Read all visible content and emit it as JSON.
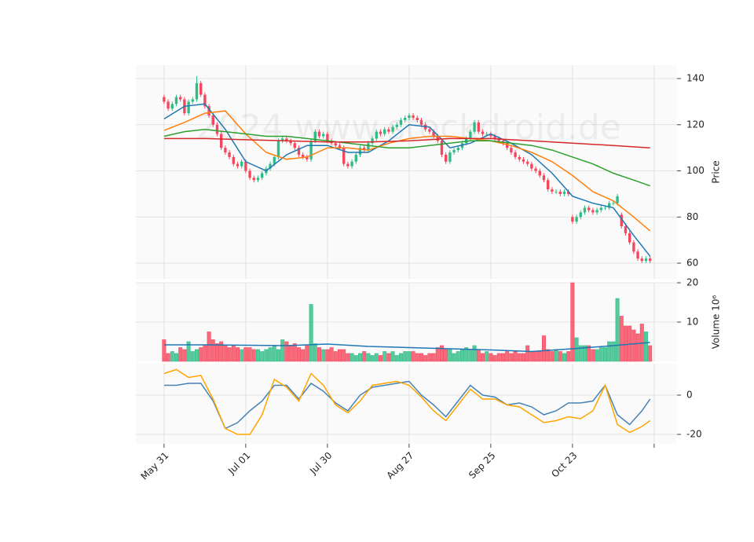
{
  "chart_data": [
    {
      "type": "candlestick",
      "watermark": "2024 www.stockdroid.de",
      "ylabel": "Price",
      "ylim": [
        53.2,
        145.8
      ],
      "yticks": [
        60,
        80,
        100,
        120,
        140
      ],
      "grid": true,
      "up_color": "#2ebd85",
      "down_color": "#f6465d",
      "open": [
        132,
        130,
        127,
        129,
        132,
        131,
        125,
        130,
        131,
        138,
        133,
        128,
        124,
        120,
        116,
        110,
        108,
        106,
        103,
        102,
        104,
        100,
        97,
        96,
        97,
        99,
        101,
        103,
        106,
        113,
        114,
        113,
        112,
        110,
        107,
        106,
        105,
        113,
        117,
        115,
        116,
        113,
        112,
        111,
        110,
        103,
        102,
        104,
        107,
        110,
        109,
        112,
        114,
        117,
        116,
        118,
        117,
        119,
        120,
        122,
        123,
        124,
        123,
        122,
        120,
        118,
        117,
        115,
        113,
        107,
        104,
        108,
        109,
        110,
        112,
        114,
        117,
        121,
        117,
        116,
        116,
        115,
        114,
        113,
        112,
        110,
        108,
        106,
        105,
        104,
        103,
        101,
        100,
        98,
        96,
        92,
        91,
        91,
        90,
        91,
        80,
        78,
        80,
        82,
        84,
        83,
        82,
        83,
        84,
        84,
        86,
        86,
        81,
        76,
        73,
        69,
        65,
        62,
        61,
        62
      ],
      "high": [
        133,
        131,
        130,
        133,
        133,
        132,
        131,
        132,
        141,
        139,
        134,
        129,
        125,
        121,
        117,
        111,
        109,
        107,
        104,
        105,
        105,
        101,
        98,
        98,
        100,
        102,
        104,
        107,
        114,
        115,
        115,
        114,
        113,
        111,
        108,
        107,
        114,
        118,
        118,
        117,
        117,
        114,
        113,
        112,
        111,
        104,
        105,
        108,
        111,
        111,
        113,
        115,
        118,
        118,
        119,
        119,
        120,
        121,
        123,
        124,
        125,
        125,
        124,
        123,
        121,
        119,
        118,
        116,
        114,
        108,
        109,
        110,
        111,
        113,
        115,
        118,
        122,
        122,
        118,
        117,
        117,
        116,
        115,
        114,
        113,
        111,
        109,
        107,
        106,
        105,
        104,
        102,
        101,
        99,
        97,
        93,
        92,
        92,
        92,
        92,
        81,
        81,
        83,
        85,
        85,
        84,
        84,
        85,
        85,
        87,
        87,
        90,
        82,
        77,
        74,
        70,
        66,
        63,
        63,
        63
      ],
      "low": [
        129,
        126,
        126,
        128,
        130,
        124,
        124,
        129,
        130,
        132,
        127,
        123,
        119,
        115,
        109,
        107,
        105,
        102,
        101,
        101,
        99,
        96,
        95,
        95,
        96,
        98,
        100,
        102,
        105,
        112,
        112,
        111,
        109,
        106,
        105,
        104,
        104,
        112,
        114,
        114,
        112,
        111,
        110,
        109,
        102,
        101,
        101,
        103,
        106,
        108,
        108,
        111,
        113,
        115,
        115,
        116,
        116,
        118,
        119,
        121,
        122,
        122,
        121,
        119,
        117,
        116,
        114,
        112,
        106,
        103,
        103,
        107,
        108,
        109,
        111,
        113,
        116,
        116,
        115,
        115,
        114,
        113,
        112,
        111,
        109,
        107,
        105,
        104,
        103,
        102,
        100,
        99,
        97,
        95,
        91,
        90,
        90,
        89,
        89,
        89,
        77,
        77,
        79,
        81,
        82,
        81,
        81,
        82,
        83,
        83,
        85,
        85,
        75,
        72,
        68,
        64,
        61,
        60,
        60,
        60
      ],
      "close": [
        130,
        127,
        129,
        132,
        131,
        125,
        130,
        131,
        138,
        133,
        128,
        124,
        120,
        116,
        110,
        108,
        106,
        103,
        102,
        104,
        100,
        97,
        96,
        97,
        99,
        101,
        103,
        106,
        113,
        114,
        113,
        112,
        110,
        107,
        106,
        105,
        113,
        117,
        115,
        116,
        113,
        112,
        111,
        110,
        103,
        102,
        104,
        107,
        110,
        109,
        112,
        114,
        117,
        116,
        118,
        117,
        119,
        120,
        122,
        123,
        124,
        123,
        122,
        120,
        118,
        117,
        115,
        113,
        107,
        104,
        108,
        109,
        110,
        112,
        114,
        117,
        121,
        117,
        116,
        116,
        115,
        114,
        113,
        112,
        110,
        108,
        106,
        105,
        104,
        103,
        101,
        100,
        98,
        96,
        92,
        91,
        91,
        90,
        91,
        90,
        78,
        80,
        82,
        84,
        83,
        82,
        83,
        84,
        84,
        86,
        86,
        89,
        76,
        73,
        69,
        65,
        62,
        61,
        62,
        61
      ],
      "series": [
        {
          "color": "#1f77b4",
          "x": [
            0,
            5,
            10,
            15,
            20,
            25,
            30,
            35,
            40,
            45,
            50,
            55,
            60,
            65,
            70,
            75,
            80,
            85,
            90,
            95,
            100,
            105,
            110,
            115,
            119
          ],
          "values": [
            122.5,
            128,
            129,
            118,
            104,
            100,
            107,
            111,
            111,
            108,
            108,
            113,
            120,
            119,
            110,
            112,
            116,
            112,
            107,
            99,
            89,
            86,
            84,
            72,
            63
          ]
        },
        {
          "color": "#ff7f0e",
          "x": [
            0,
            5,
            10,
            15,
            20,
            25,
            30,
            35,
            40,
            45,
            50,
            55,
            60,
            65,
            70,
            75,
            80,
            85,
            90,
            95,
            100,
            105,
            110,
            115,
            119
          ],
          "values": [
            117.5,
            121,
            125,
            126,
            116,
            108,
            105,
            106,
            110,
            110,
            109,
            112,
            114,
            115,
            115,
            114,
            113,
            111,
            108,
            104,
            98,
            91,
            87,
            80,
            74
          ]
        },
        {
          "color": "#2ca02c",
          "x": [
            0,
            5,
            10,
            15,
            20,
            25,
            30,
            35,
            40,
            45,
            50,
            55,
            60,
            65,
            70,
            75,
            80,
            85,
            90,
            95,
            100,
            105,
            110,
            115,
            119
          ],
          "values": [
            115,
            117,
            118,
            117,
            116,
            115,
            115,
            114,
            113,
            112,
            111,
            110,
            110,
            111,
            112,
            113,
            113,
            112,
            111,
            109,
            106,
            103,
            99,
            96,
            93.5
          ]
        },
        {
          "color": "#d62728",
          "x": [
            0,
            10,
            20,
            30,
            40,
            50,
            60,
            70,
            80,
            90,
            100,
            110,
            119
          ],
          "values": [
            114,
            114,
            113.5,
            113,
            112.5,
            112.5,
            113,
            114,
            114,
            113,
            112,
            111,
            110
          ]
        }
      ]
    },
    {
      "type": "bar",
      "ylabel": "Volume  10⁶",
      "ylim": [
        0,
        20
      ],
      "yticks": [
        10,
        20
      ],
      "grid": true,
      "values": [
        5.5,
        2,
        2.5,
        2,
        3.5,
        3,
        5,
        2.5,
        3,
        3.5,
        4,
        7.5,
        5.5,
        4.5,
        5,
        4,
        3.5,
        4,
        3.5,
        3,
        3.5,
        3.5,
        3,
        3,
        2.5,
        3,
        3.5,
        4,
        3,
        5.5,
        5,
        4,
        4.5,
        3.5,
        3,
        4,
        14.5,
        4.5,
        3.5,
        3,
        3,
        3.5,
        2.5,
        3,
        3,
        2,
        2,
        1.5,
        2,
        2.5,
        2,
        1.5,
        2,
        1.5,
        2.5,
        2,
        2.5,
        1.5,
        2,
        2.5,
        2.5,
        2.5,
        2,
        2,
        1.5,
        2,
        2,
        3.5,
        4,
        3,
        3,
        2,
        2.5,
        3,
        3.5,
        3,
        4,
        3,
        2,
        2.5,
        2,
        1.5,
        2,
        2,
        2.5,
        2,
        2.5,
        2,
        2,
        4,
        2.5,
        2.5,
        2.5,
        6.5,
        3,
        2.5,
        3,
        2.5,
        2,
        2.5,
        20,
        6,
        4,
        4,
        4,
        3,
        3,
        3.5,
        3.5,
        5,
        5,
        16,
        11.5,
        9,
        9,
        8,
        7,
        9.5,
        7.5,
        4
      ],
      "series": [
        {
          "color": "#1f77b4",
          "x": [
            0,
            10,
            20,
            30,
            40,
            50,
            60,
            70,
            80,
            90,
            100,
            110,
            119
          ],
          "values": [
            4.2,
            4.2,
            4.1,
            4.0,
            4.4,
            3.8,
            3.5,
            3.2,
            2.9,
            2.5,
            3.2,
            4.0,
            4.8
          ]
        }
      ]
    },
    {
      "type": "line",
      "ylim": [
        -24.8,
        16
      ],
      "yticks": [
        -20,
        0
      ],
      "grid": true,
      "xlim": [
        -6.9,
        125.6
      ],
      "xticks": [
        {
          "value": 0,
          "label": "May 31"
        },
        {
          "value": 20,
          "label": "Jul 01"
        },
        {
          "value": 40,
          "label": "Jul 30"
        },
        {
          "value": 60,
          "label": "Aug 27"
        },
        {
          "value": 80,
          "label": "Sep 25"
        },
        {
          "value": 100,
          "label": "Oct 23"
        },
        {
          "value": 120,
          "label": null
        }
      ],
      "series": [
        {
          "color": "#4682b4",
          "x": [
            0,
            3,
            6,
            9,
            12,
            15,
            18,
            21,
            24,
            27,
            30,
            33,
            36,
            39,
            42,
            45,
            48,
            51,
            54,
            57,
            60,
            63,
            66,
            69,
            72,
            75,
            78,
            81,
            84,
            87,
            90,
            93,
            96,
            99,
            102,
            105,
            108,
            111,
            114,
            117,
            119
          ],
          "values": [
            5,
            5,
            6,
            6,
            -3,
            -17,
            -14,
            -8,
            -3,
            5,
            5,
            -2,
            6,
            2,
            -4,
            -8,
            0,
            4,
            5,
            6,
            7,
            0,
            -5,
            -11,
            -3,
            5,
            0,
            -1,
            -5,
            -4,
            -6,
            -10,
            -8,
            -4,
            -4,
            -3,
            5,
            -10,
            -15,
            -8,
            -2
          ]
        },
        {
          "color": "#ffa500",
          "x": [
            0,
            3,
            6,
            9,
            12,
            15,
            18,
            21,
            24,
            27,
            30,
            33,
            36,
            39,
            42,
            45,
            48,
            51,
            54,
            57,
            60,
            63,
            66,
            69,
            72,
            75,
            78,
            81,
            84,
            87,
            90,
            93,
            96,
            99,
            102,
            105,
            108,
            111,
            114,
            117,
            119
          ],
          "values": [
            11,
            13,
            9,
            10,
            -2,
            -17,
            -20,
            -20,
            -10,
            8,
            4,
            -3,
            11,
            5,
            -5,
            -9,
            -3,
            5,
            6,
            7,
            5,
            -1,
            -8,
            -13,
            -5,
            3,
            -2,
            -2,
            -5,
            -6,
            -10,
            -14,
            -13,
            -11,
            -12,
            -8,
            5,
            -15,
            -19,
            -16,
            -13
          ]
        }
      ]
    }
  ]
}
